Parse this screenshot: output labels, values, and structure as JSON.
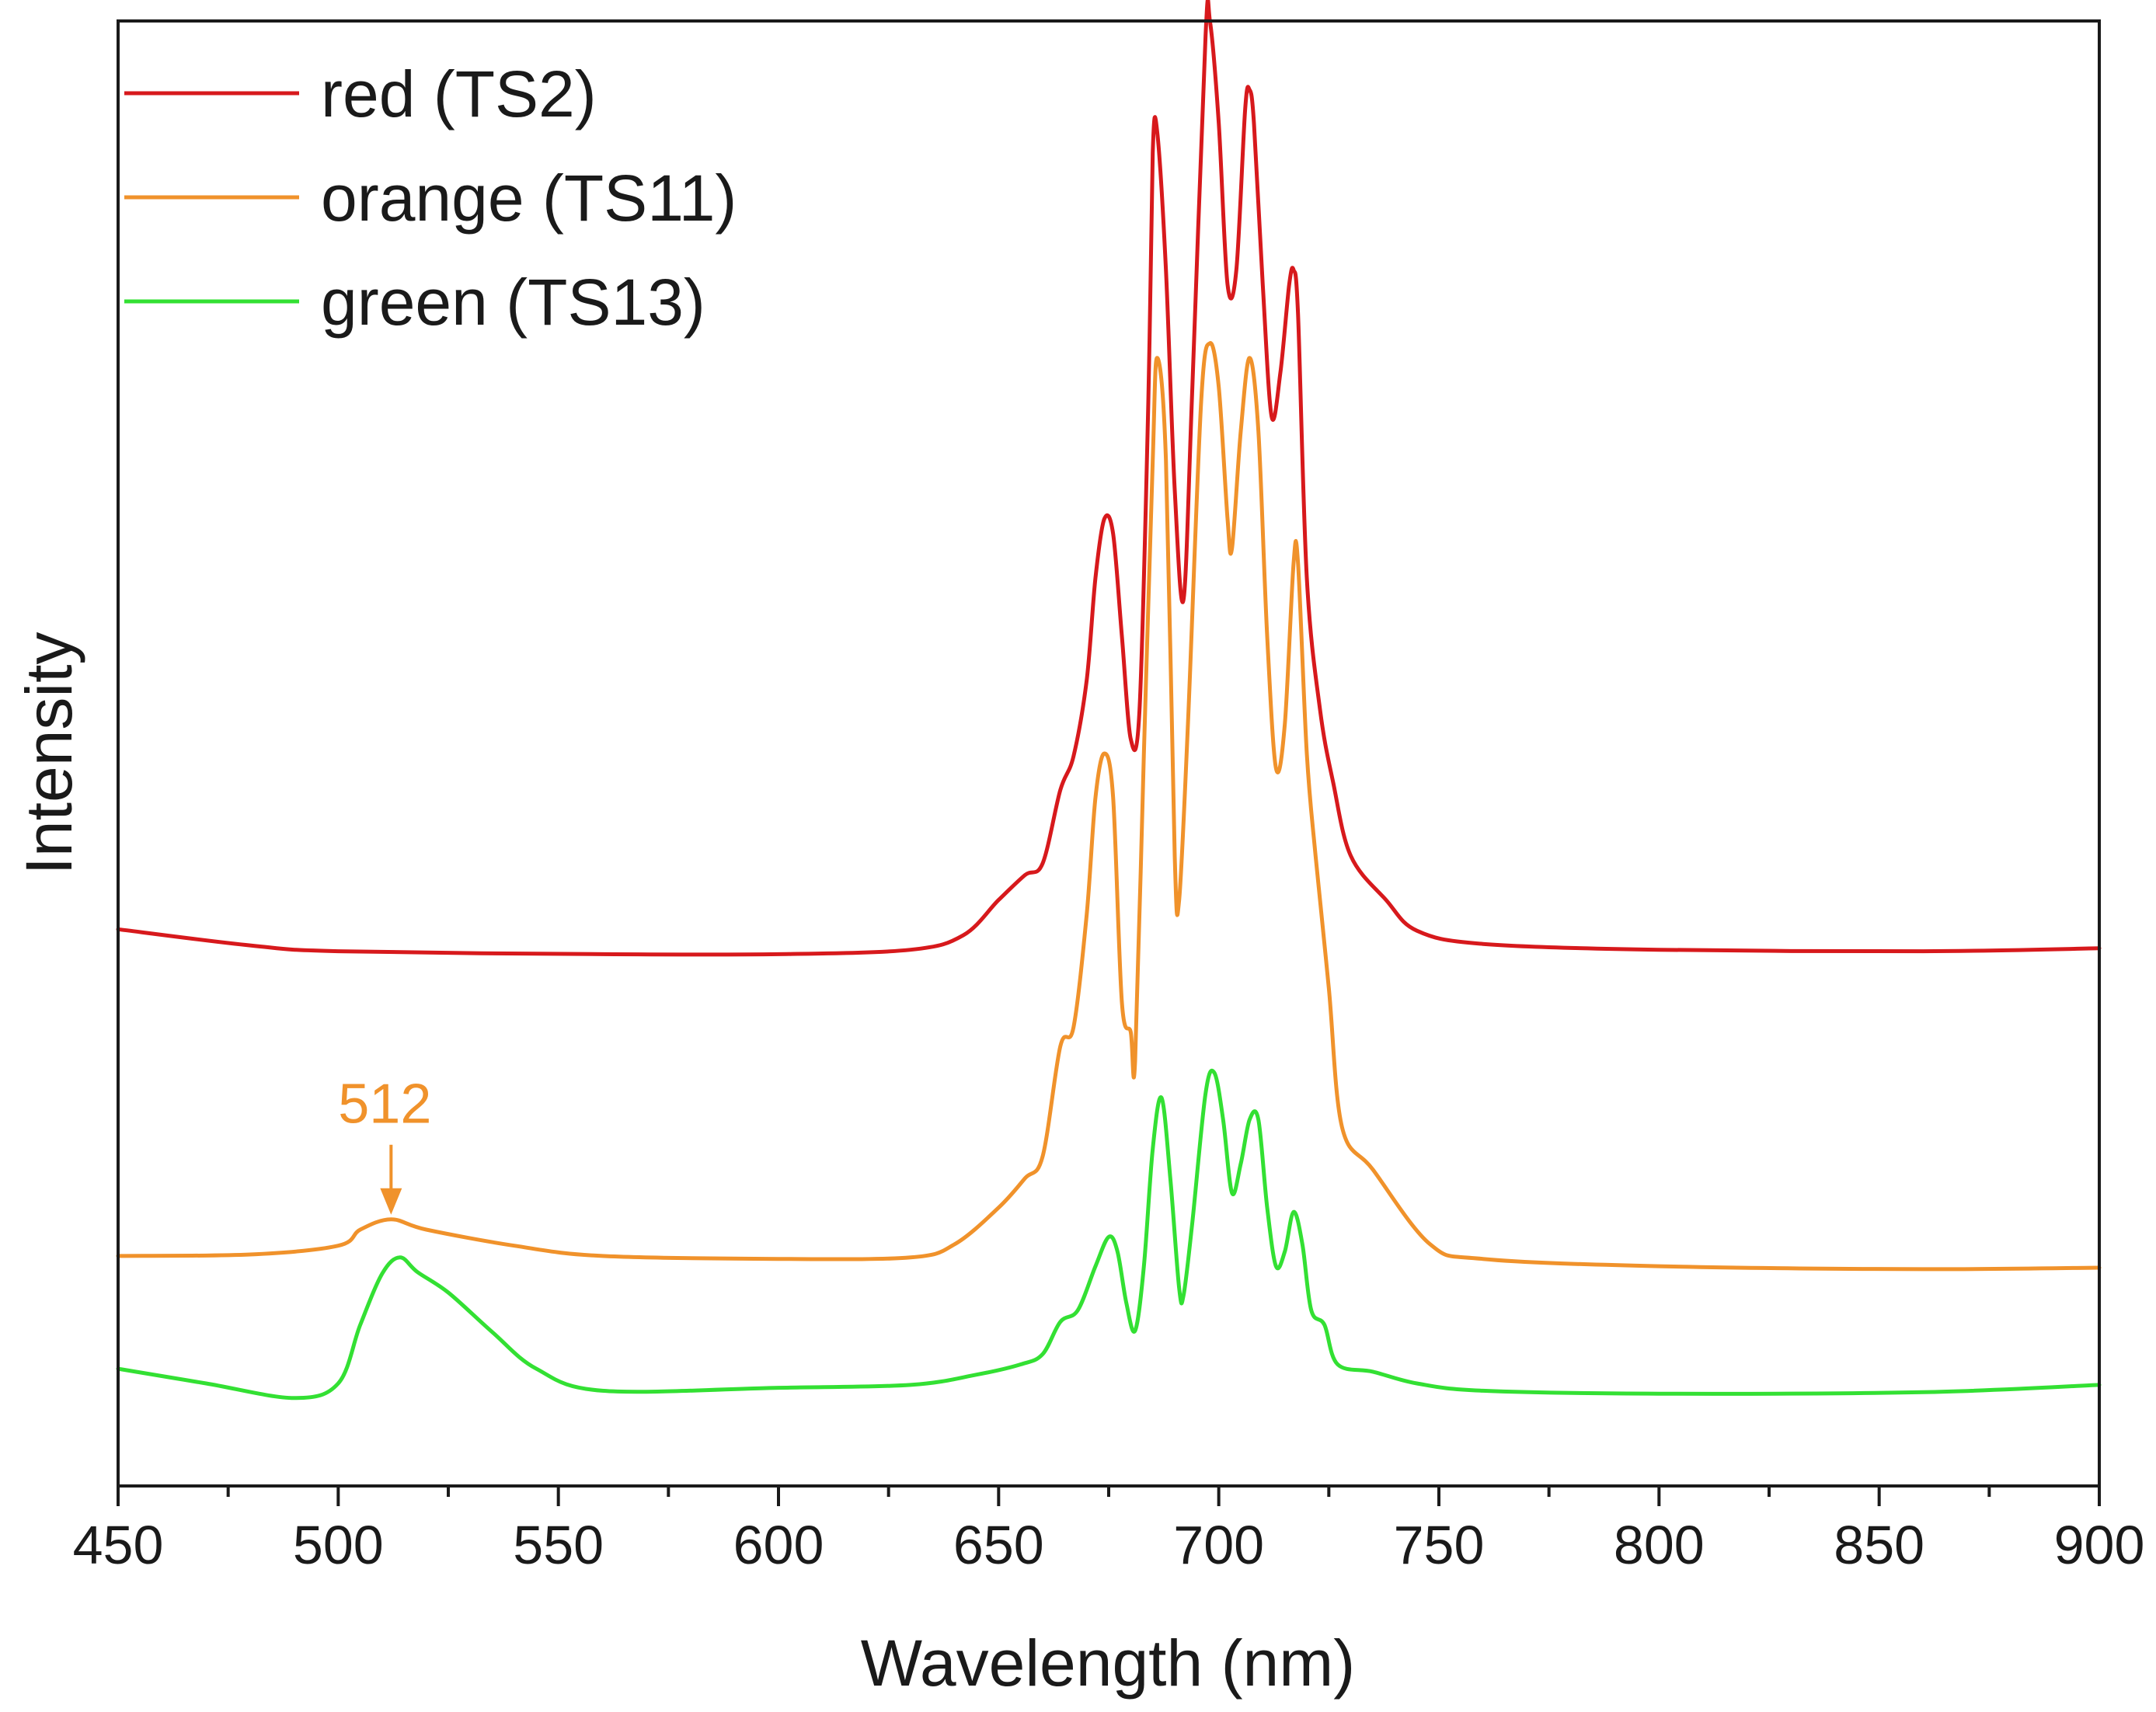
{
  "chart_data": {
    "type": "line",
    "title": "",
    "xlabel": "Wavelength (nm)",
    "ylabel": "Intensity",
    "xlim": [
      450,
      900
    ],
    "ylim": [
      0,
      100
    ],
    "x_ticks": [
      450,
      500,
      550,
      600,
      650,
      700,
      750,
      800,
      850,
      900
    ],
    "y_ticks_shown": false,
    "grid": false,
    "legend_position": "top-left",
    "colors": {
      "red": "#d7191c",
      "orange": "#f0922b",
      "green": "#33e033",
      "axis": "#1a1a1a"
    },
    "annotations": [
      {
        "text": "512",
        "x": 512,
        "y": 18.2,
        "color": "#f0922b",
        "arrow": "down"
      }
    ],
    "series": [
      {
        "name": "red (TS2)",
        "color": "#d7191c",
        "points": [
          [
            450,
            38
          ],
          [
            480,
            36.9
          ],
          [
            500,
            36.5
          ],
          [
            560,
            36.3
          ],
          [
            600,
            36.3
          ],
          [
            630,
            36.6
          ],
          [
            642,
            37.6
          ],
          [
            650,
            40
          ],
          [
            656,
            41.7
          ],
          [
            660,
            42.5
          ],
          [
            664,
            47.5
          ],
          [
            667,
            49.8
          ],
          [
            670,
            55
          ],
          [
            672,
            62
          ],
          [
            674,
            66
          ],
          [
            676,
            65
          ],
          [
            678,
            58
          ],
          [
            680,
            51
          ],
          [
            682,
            53
          ],
          [
            684,
            74
          ],
          [
            685,
            91
          ],
          [
            686,
            92.5
          ],
          [
            688,
            83
          ],
          [
            690,
            68
          ],
          [
            692,
            60.5
          ],
          [
            694,
            75
          ],
          [
            697,
            99
          ],
          [
            698,
            100
          ],
          [
            700,
            93
          ],
          [
            702,
            82
          ],
          [
            704,
            83
          ],
          [
            706,
            94
          ],
          [
            707,
            95.3
          ],
          [
            708,
            93
          ],
          [
            710,
            82
          ],
          [
            712,
            73
          ],
          [
            714,
            76
          ],
          [
            716,
            82
          ],
          [
            717,
            83
          ],
          [
            718,
            80
          ],
          [
            720,
            62
          ],
          [
            723,
            53
          ],
          [
            726,
            48
          ],
          [
            730,
            43
          ],
          [
            738,
            40
          ],
          [
            745,
            37.9
          ],
          [
            760,
            37
          ],
          [
            800,
            36.6
          ],
          [
            860,
            36.5
          ],
          [
            900,
            36.7
          ]
        ]
      },
      {
        "name": "orange (TS11)",
        "color": "#f0922b",
        "points": [
          [
            450,
            15.7
          ],
          [
            480,
            15.8
          ],
          [
            500,
            16.4
          ],
          [
            505,
            17.5
          ],
          [
            512,
            18.2
          ],
          [
            520,
            17.5
          ],
          [
            540,
            16.4
          ],
          [
            560,
            15.7
          ],
          [
            600,
            15.5
          ],
          [
            630,
            15.6
          ],
          [
            640,
            16.5
          ],
          [
            650,
            19
          ],
          [
            656,
            21
          ],
          [
            660,
            22.5
          ],
          [
            664,
            30
          ],
          [
            667,
            31.3
          ],
          [
            670,
            39
          ],
          [
            672,
            47
          ],
          [
            674,
            50
          ],
          [
            676,
            47
          ],
          [
            678,
            33
          ],
          [
            680,
            31
          ],
          [
            681,
            29
          ],
          [
            683,
            50
          ],
          [
            685,
            70
          ],
          [
            686,
            77
          ],
          [
            688,
            70
          ],
          [
            690,
            43
          ],
          [
            691,
            40
          ],
          [
            693,
            52
          ],
          [
            696,
            74
          ],
          [
            698,
            78
          ],
          [
            700,
            75
          ],
          [
            702,
            66
          ],
          [
            703,
            64
          ],
          [
            705,
            72
          ],
          [
            707,
            77
          ],
          [
            709,
            72
          ],
          [
            711,
            58
          ],
          [
            713,
            49
          ],
          [
            715,
            52
          ],
          [
            717,
            63
          ],
          [
            718,
            63
          ],
          [
            720,
            50
          ],
          [
            722,
            43
          ],
          [
            725,
            34
          ],
          [
            728,
            24.5
          ],
          [
            735,
            21.6
          ],
          [
            748,
            16.5
          ],
          [
            760,
            15.5
          ],
          [
            800,
            15
          ],
          [
            860,
            14.8
          ],
          [
            900,
            14.9
          ]
        ]
      },
      {
        "name": "green (TS13)",
        "color": "#33e033",
        "points": [
          [
            450,
            8
          ],
          [
            470,
            7
          ],
          [
            490,
            6
          ],
          [
            500,
            7
          ],
          [
            505,
            11
          ],
          [
            510,
            14.5
          ],
          [
            514,
            15.6
          ],
          [
            518,
            14.6
          ],
          [
            525,
            13.2
          ],
          [
            535,
            10.5
          ],
          [
            545,
            8
          ],
          [
            560,
            6.5
          ],
          [
            600,
            6.7
          ],
          [
            630,
            6.9
          ],
          [
            645,
            7.6
          ],
          [
            655,
            8.3
          ],
          [
            660,
            9
          ],
          [
            664,
            11.2
          ],
          [
            668,
            12
          ],
          [
            672,
            15
          ],
          [
            675,
            17
          ],
          [
            677,
            16
          ],
          [
            679,
            12.5
          ],
          [
            681,
            10.6
          ],
          [
            683,
            15
          ],
          [
            685,
            23
          ],
          [
            687,
            26.5
          ],
          [
            689,
            21
          ],
          [
            691,
            13.5
          ],
          [
            692,
            13
          ],
          [
            694,
            18
          ],
          [
            697,
            26.8
          ],
          [
            699,
            28.2
          ],
          [
            701,
            25
          ],
          [
            703,
            20
          ],
          [
            705,
            22
          ],
          [
            707,
            25
          ],
          [
            709,
            25
          ],
          [
            711,
            19
          ],
          [
            713,
            15
          ],
          [
            715,
            16
          ],
          [
            717,
            18.7
          ],
          [
            719,
            16.5
          ],
          [
            721,
            12
          ],
          [
            724,
            11
          ],
          [
            727,
            8.3
          ],
          [
            735,
            7.8
          ],
          [
            745,
            7
          ],
          [
            760,
            6.5
          ],
          [
            800,
            6.3
          ],
          [
            860,
            6.4
          ],
          [
            900,
            6.9
          ]
        ]
      }
    ]
  }
}
